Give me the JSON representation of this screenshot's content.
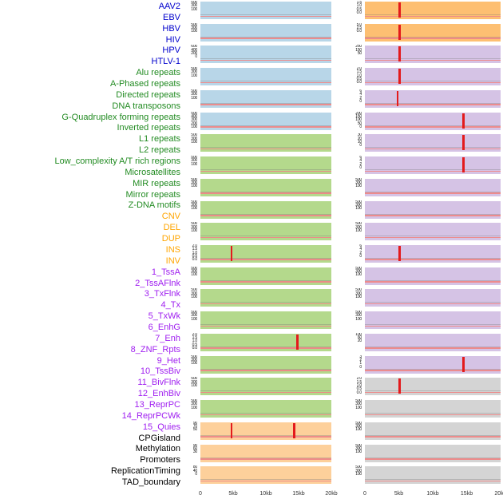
{
  "chart_data": {
    "type": "area",
    "title": "",
    "description": "Multi-panel genomic feature density tracks in two columns over a 0-20kb window; red vertical spikes mark enriched positions, pink baseline marks background signal.",
    "x_axis": {
      "tick_labels": [
        "0",
        "5kb",
        "10kb",
        "15kb",
        "20kb"
      ],
      "range_kb": [
        0,
        20
      ],
      "unit": "kb"
    },
    "label_colors": {
      "virus": "#0000cd",
      "repeat": "#228b22",
      "sv": "#ffa500",
      "chromhmm": "#a020f0",
      "other": "#000000"
    },
    "panel_colors": {
      "lightblue": "#b8d6e8",
      "green": "#b4d98c",
      "peach": "#fdd09b",
      "orange": "#fdbf72",
      "purple": "#d5c3e5",
      "gray": "#d4d4d4"
    },
    "series_colors": {
      "spike": "#e31a1c",
      "baseline": "#ee8888"
    },
    "row_labels": [
      {
        "text": "AAV2",
        "group": "virus"
      },
      {
        "text": "EBV",
        "group": "virus"
      },
      {
        "text": "HBV",
        "group": "virus"
      },
      {
        "text": "HIV",
        "group": "virus"
      },
      {
        "text": "HPV",
        "group": "virus"
      },
      {
        "text": "HTLV-1",
        "group": "virus"
      },
      {
        "text": "Alu repeats",
        "group": "repeat"
      },
      {
        "text": "A-Phased repeats",
        "group": "repeat"
      },
      {
        "text": "Directed repeats",
        "group": "repeat"
      },
      {
        "text": "DNA transposons",
        "group": "repeat"
      },
      {
        "text": "G-Quadruplex forming repeats",
        "group": "repeat"
      },
      {
        "text": "Inverted repeats",
        "group": "repeat"
      },
      {
        "text": "L1 repeats",
        "group": "repeat"
      },
      {
        "text": "L2 repeats",
        "group": "repeat"
      },
      {
        "text": "Low_complexity A/T rich regions",
        "group": "repeat"
      },
      {
        "text": "Microsatellites",
        "group": "repeat"
      },
      {
        "text": "MIR repeats",
        "group": "repeat"
      },
      {
        "text": "Mirror repeats",
        "group": "repeat"
      },
      {
        "text": "Z-DNA motifs",
        "group": "repeat"
      },
      {
        "text": "CNV",
        "group": "sv"
      },
      {
        "text": "DEL",
        "group": "sv"
      },
      {
        "text": "DUP",
        "group": "sv"
      },
      {
        "text": "INS",
        "group": "sv"
      },
      {
        "text": "INV",
        "group": "sv"
      },
      {
        "text": "1_TssA",
        "group": "chromhmm"
      },
      {
        "text": "2_TssAFlnk",
        "group": "chromhmm"
      },
      {
        "text": "3_TxFlnk",
        "group": "chromhmm"
      },
      {
        "text": "4_Tx",
        "group": "chromhmm"
      },
      {
        "text": "5_TxWk",
        "group": "chromhmm"
      },
      {
        "text": "6_EnhG",
        "group": "chromhmm"
      },
      {
        "text": "7_Enh",
        "group": "chromhmm"
      },
      {
        "text": "8_ZNF_Rpts",
        "group": "chromhmm"
      },
      {
        "text": "9_Het",
        "group": "chromhmm"
      },
      {
        "text": "10_TssBiv",
        "group": "chromhmm"
      },
      {
        "text": "11_BivFlnk",
        "group": "chromhmm"
      },
      {
        "text": "12_EnhBiv",
        "group": "chromhmm"
      },
      {
        "text": "13_ReprPC",
        "group": "chromhmm"
      },
      {
        "text": "14_ReprPCWk",
        "group": "chromhmm"
      },
      {
        "text": "15_Quies",
        "group": "chromhmm"
      },
      {
        "text": "CPGisland",
        "group": "other"
      },
      {
        "text": "Methylation",
        "group": "other"
      },
      {
        "text": "Promoters",
        "group": "other"
      },
      {
        "text": "ReplicationTiming",
        "group": "other"
      },
      {
        "text": "TAD_boundary",
        "group": "other"
      }
    ],
    "left_panels": [
      {
        "rows": "AAV2 / EBV",
        "bg": "lightblue",
        "y_ticks": [
          "500",
          "300",
          "100"
        ],
        "spikes_kb": []
      },
      {
        "rows": "HBV / HIV",
        "bg": "lightblue",
        "y_ticks": [
          "500",
          "300",
          "100"
        ],
        "spikes_kb": []
      },
      {
        "rows": "HPV / HTLV-1",
        "bg": "lightblue",
        "y_ticks": [
          "600",
          "400",
          "200",
          "0"
        ],
        "spikes_kb": []
      },
      {
        "rows": "Alu repeats / A-Phased repeats",
        "bg": "lightblue",
        "y_ticks": [
          "500",
          "300",
          "100"
        ],
        "spikes_kb": []
      },
      {
        "rows": "Directed repeats / DNA transposons",
        "bg": "lightblue",
        "y_ticks": [
          "500",
          "300",
          "100"
        ],
        "spikes_kb": []
      },
      {
        "rows": "G-Quadruplex forming repeats / Inverted repeats",
        "bg": "lightblue",
        "y_ticks": [
          "500",
          "400",
          "300",
          "200",
          "100"
        ],
        "spikes_kb": []
      },
      {
        "rows": "L1 repeats / L2 repeats",
        "bg": "green",
        "y_ticks": [
          "500",
          "300",
          "100"
        ],
        "spikes_kb": []
      },
      {
        "rows": "Low_complexity A/T rich regions / Microsatellites",
        "bg": "green",
        "y_ticks": [
          "500",
          "300",
          "100"
        ],
        "spikes_kb": []
      },
      {
        "rows": "MIR repeats / Mirror repeats",
        "bg": "green",
        "y_ticks": [
          "500",
          "300",
          "100"
        ],
        "spikes_kb": []
      },
      {
        "rows": "Z-DNA motifs / CNV",
        "bg": "green",
        "y_ticks": [
          "500",
          "300",
          "100"
        ],
        "spikes_kb": []
      },
      {
        "rows": "DEL / DUP",
        "bg": "green",
        "y_ticks": [
          "500",
          "300",
          "100"
        ],
        "spikes_kb": []
      },
      {
        "rows": "INS / INV",
        "bg": "green",
        "y_ticks": [
          "2.0",
          "1.5",
          "1.0",
          "0.5",
          "0.0"
        ],
        "spikes_kb": [
          4.7
        ]
      },
      {
        "rows": "1_TssA / 2_TssAFlnk",
        "bg": "green",
        "y_ticks": [
          "500",
          "300",
          "100"
        ],
        "spikes_kb": []
      },
      {
        "rows": "3_TxFlnk / 4_Tx",
        "bg": "green",
        "y_ticks": [
          "500",
          "300",
          "100"
        ],
        "spikes_kb": []
      },
      {
        "rows": "5_TxWk / 6_EnhG",
        "bg": "green",
        "y_ticks": [
          "500",
          "300",
          "100"
        ],
        "spikes_kb": []
      },
      {
        "rows": "7_Enh / 8_ZNF_Rpts",
        "bg": "green",
        "y_ticks": [
          "2.0",
          "1.5",
          "1.0",
          "0.5",
          "0.0"
        ],
        "spikes_kb": [
          14.8
        ]
      },
      {
        "rows": "9_Het / 10_TssBiv",
        "bg": "green",
        "y_ticks": [
          "500",
          "300",
          "100"
        ],
        "spikes_kb": []
      },
      {
        "rows": "11_BivFlnk / 12_EnhBiv",
        "bg": "green",
        "y_ticks": [
          "500",
          "300",
          "100"
        ],
        "spikes_kb": []
      },
      {
        "rows": "13_ReprPC / 14_ReprPCWk",
        "bg": "green",
        "y_ticks": [
          "500",
          "300",
          "100"
        ],
        "spikes_kb": []
      },
      {
        "rows": "15_Quies / CPGisland",
        "bg": "peach",
        "y_ticks": [
          "90",
          "70",
          "50"
        ],
        "spikes_kb": [
          4.7,
          14.3
        ]
      },
      {
        "rows": "Methylation / Promoters",
        "bg": "peach",
        "y_ticks": [
          "90",
          "60",
          "30"
        ],
        "spikes_kb": []
      },
      {
        "rows": "ReplicationTiming / TAD_boundary",
        "bg": "peach",
        "y_ticks": [
          "80",
          "40",
          "0"
        ],
        "spikes_kb": []
      }
    ],
    "right_panels": [
      {
        "rows": "AAV2 / EBV",
        "bg": "orange",
        "y_ticks": [
          "1.5",
          "1.0",
          "0.5",
          "0.0"
        ],
        "spikes_kb": [
          5.1
        ]
      },
      {
        "rows": "HBV / HIV",
        "bg": "orange",
        "y_ticks": [
          "5.0",
          "2.5",
          "0.0"
        ],
        "spikes_kb": [
          5.1
        ]
      },
      {
        "rows": "HPV / HTLV-1",
        "bg": "purple",
        "y_ticks": [
          "250",
          "150",
          "50"
        ],
        "spikes_kb": [
          5.1
        ]
      },
      {
        "rows": "Alu repeats / A-Phased repeats",
        "bg": "purple",
        "y_ticks": [
          "2.0",
          "1.5",
          "1.0",
          "0.5",
          "0.0"
        ],
        "spikes_kb": [
          5.1
        ]
      },
      {
        "rows": "Directed repeats / DNA transposons",
        "bg": "purple",
        "y_ticks": [
          "6",
          "4",
          "2",
          "0"
        ],
        "spikes_kb": [
          4.8
        ]
      },
      {
        "rows": "G-Quadruplex forming repeats / Inverted repeats",
        "bg": "purple",
        "y_ticks": [
          "200",
          "150",
          "100",
          "50",
          "0"
        ],
        "spikes_kb": [
          14.5
        ]
      },
      {
        "rows": "L1 repeats / L2 repeats",
        "bg": "purple",
        "y_ticks": [
          "30",
          "20",
          "10",
          "0"
        ],
        "spikes_kb": [
          14.5
        ]
      },
      {
        "rows": "Low_complexity A/T rich regions / Microsatellites",
        "bg": "purple",
        "y_ticks": [
          "6",
          "4",
          "2",
          "0"
        ],
        "spikes_kb": [
          14.5
        ]
      },
      {
        "rows": "MIR repeats / Mirror repeats",
        "bg": "purple",
        "y_ticks": [
          "500",
          "300",
          "100"
        ],
        "spikes_kb": []
      },
      {
        "rows": "Z-DNA motifs / CNV",
        "bg": "purple",
        "y_ticks": [
          "500",
          "300",
          "100"
        ],
        "spikes_kb": []
      },
      {
        "rows": "DEL / DUP",
        "bg": "purple",
        "y_ticks": [
          "500",
          "300",
          "100"
        ],
        "spikes_kb": []
      },
      {
        "rows": "INS / INV",
        "bg": "purple",
        "y_ticks": [
          "6",
          "4",
          "2",
          "0"
        ],
        "spikes_kb": [
          5.1
        ]
      },
      {
        "rows": "1_TssA / 2_TssAFlnk",
        "bg": "purple",
        "y_ticks": [
          "500",
          "300",
          "100"
        ],
        "spikes_kb": []
      },
      {
        "rows": "3_TxFlnk / 4_Tx",
        "bg": "purple",
        "y_ticks": [
          "500",
          "300",
          "100"
        ],
        "spikes_kb": []
      },
      {
        "rows": "5_TxWk / 6_EnhG",
        "bg": "purple",
        "y_ticks": [
          "500",
          "300",
          "100"
        ],
        "spikes_kb": []
      },
      {
        "rows": "7_Enh / 8_ZNF_Rpts",
        "bg": "purple",
        "y_ticks": [
          "100",
          "60",
          "20"
        ],
        "spikes_kb": []
      },
      {
        "rows": "9_Het / 10_TssBiv",
        "bg": "purple",
        "y_ticks": [
          "3",
          "2",
          "1",
          "0"
        ],
        "spikes_kb": [
          14.5
        ]
      },
      {
        "rows": "11_BivFlnk / 12_EnhBiv",
        "bg": "gray",
        "y_ticks": [
          "2.0",
          "1.5",
          "1.0",
          "0.5",
          "0.0"
        ],
        "spikes_kb": [
          5.1
        ]
      },
      {
        "rows": "13_ReprPC / 14_ReprPCWk",
        "bg": "gray",
        "y_ticks": [
          "500",
          "300",
          "100"
        ],
        "spikes_kb": []
      },
      {
        "rows": "15_Quies / CPGisland",
        "bg": "gray",
        "y_ticks": [
          "500",
          "300",
          "100"
        ],
        "spikes_kb": []
      },
      {
        "rows": "Methylation / Promoters",
        "bg": "gray",
        "y_ticks": [
          "500",
          "300",
          "100"
        ],
        "spikes_kb": []
      },
      {
        "rows": "ReplicationTiming / TAD_boundary",
        "bg": "gray",
        "y_ticks": [
          "500",
          "300",
          "100"
        ],
        "spikes_kb": []
      }
    ]
  }
}
